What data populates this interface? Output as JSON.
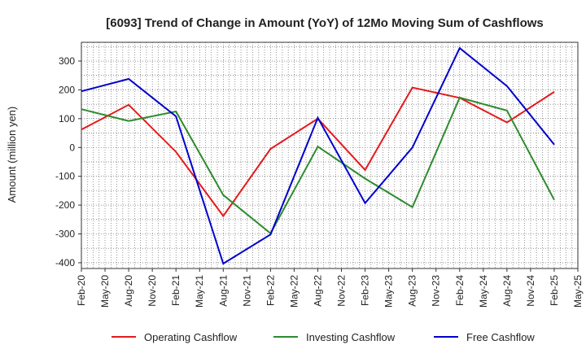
{
  "chart_data": {
    "type": "line",
    "title": "[6093]  Trend of Change in Amount (YoY) of 12Mo Moving Sum of Cashflows",
    "xlabel": "",
    "ylabel": "Amount (million yen)",
    "ylim": [
      -420,
      365
    ],
    "yticks": [
      300,
      200,
      100,
      0,
      -100,
      -200,
      -300,
      -400
    ],
    "ytick_labels": [
      "300",
      "200",
      "100",
      "0",
      "-100",
      "-200",
      "-300",
      "-400"
    ],
    "x_labels": [
      "Feb-20",
      "May-20",
      "Aug-20",
      "Nov-20",
      "Feb-21",
      "May-21",
      "Aug-21",
      "Nov-21",
      "Feb-22",
      "May-22",
      "Aug-22",
      "Nov-22",
      "Feb-23",
      "May-23",
      "Aug-23",
      "Nov-23",
      "Feb-24",
      "May-24",
      "Aug-24",
      "Nov-24",
      "Feb-25",
      "May-25"
    ],
    "grid": true,
    "legend_position": "bottom",
    "series": [
      {
        "name": "Operating Cashflow",
        "color": "#e41a1c",
        "points": [
          {
            "x": "Feb-20",
            "y": 62
          },
          {
            "x": "Aug-20",
            "y": 148
          },
          {
            "x": "Feb-21",
            "y": -15
          },
          {
            "x": "Aug-21",
            "y": -238
          },
          {
            "x": "Feb-22",
            "y": -5
          },
          {
            "x": "Aug-22",
            "y": 100
          },
          {
            "x": "Feb-23",
            "y": -78
          },
          {
            "x": "Aug-23",
            "y": 208
          },
          {
            "x": "Feb-24",
            "y": 172
          },
          {
            "x": "Aug-24",
            "y": 87
          },
          {
            "x": "Feb-25",
            "y": 193
          }
        ]
      },
      {
        "name": "Investing Cashflow",
        "color": "#2e8b2e",
        "points": [
          {
            "x": "Feb-20",
            "y": 133
          },
          {
            "x": "Aug-20",
            "y": 92
          },
          {
            "x": "Feb-21",
            "y": 125
          },
          {
            "x": "Aug-21",
            "y": -165
          },
          {
            "x": "Feb-22",
            "y": -298
          },
          {
            "x": "Aug-22",
            "y": 3
          },
          {
            "x": "Feb-23",
            "y": -108
          },
          {
            "x": "Aug-23",
            "y": -207
          },
          {
            "x": "Feb-24",
            "y": 173
          },
          {
            "x": "Aug-24",
            "y": 128
          },
          {
            "x": "Feb-25",
            "y": -182
          }
        ]
      },
      {
        "name": "Free Cashflow",
        "color": "#0000cc",
        "points": [
          {
            "x": "Feb-20",
            "y": 195
          },
          {
            "x": "Aug-20",
            "y": 238
          },
          {
            "x": "Feb-21",
            "y": 108
          },
          {
            "x": "Aug-21",
            "y": -403
          },
          {
            "x": "Feb-22",
            "y": -302
          },
          {
            "x": "Aug-22",
            "y": 103
          },
          {
            "x": "Feb-23",
            "y": -193
          },
          {
            "x": "Aug-23",
            "y": 0
          },
          {
            "x": "Feb-24",
            "y": 345
          },
          {
            "x": "Aug-24",
            "y": 213
          },
          {
            "x": "Feb-25",
            "y": 10
          }
        ]
      }
    ]
  }
}
